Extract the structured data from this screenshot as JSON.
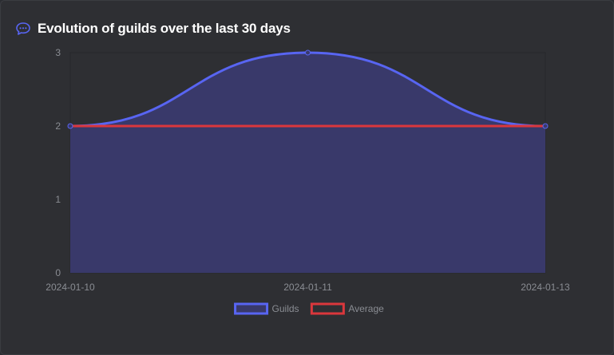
{
  "card": {
    "title": "Evolution of guilds over the last 30 days",
    "icon": "chat-bubble-icon"
  },
  "colors": {
    "guilds": "#5865f2",
    "guilds_fill": "#39396a",
    "average": "#da373c",
    "background": "#2e2f33",
    "grid": "#26272b",
    "tick_text": "#8a8d93"
  },
  "chart_data": {
    "type": "line",
    "title": "Evolution of guilds over the last 30 days",
    "categories": [
      "2024-01-10",
      "2024-01-11",
      "2024-01-13"
    ],
    "series": [
      {
        "name": "Guilds",
        "values": [
          2,
          3,
          2
        ],
        "fill": true,
        "smooth": true
      },
      {
        "name": "Average",
        "values": [
          2,
          2,
          2
        ],
        "fill": false
      }
    ],
    "ylim": [
      0,
      3
    ],
    "yticks": [
      0,
      1,
      2,
      3
    ],
    "xlabel": "",
    "ylabel": "",
    "grid": true,
    "legend": "bottom-center"
  }
}
